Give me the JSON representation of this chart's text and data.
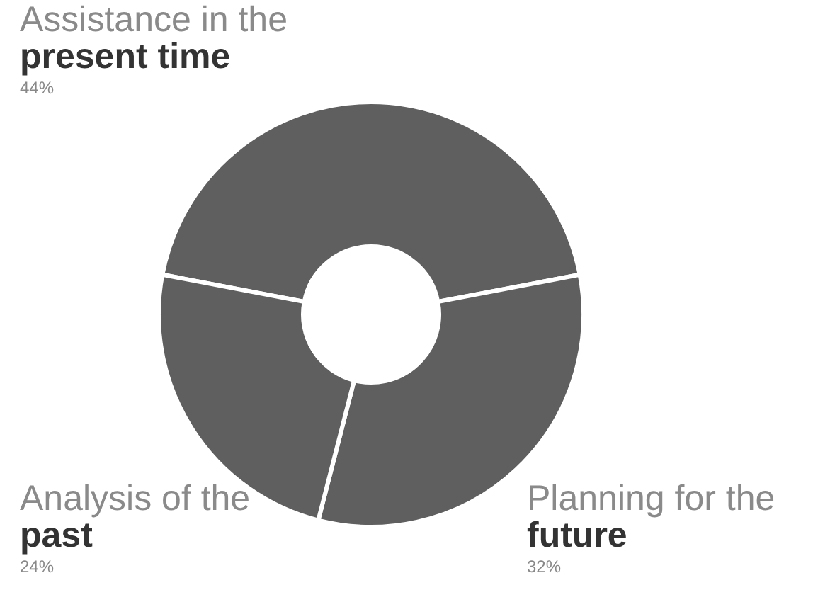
{
  "chart_data": {
    "type": "donut",
    "categories": [
      "Assistance in the\npresent time",
      "Planning for the\nfuture",
      "Analysis of the\npast"
    ],
    "values": [
      44,
      32,
      24
    ],
    "value_labels": [
      "44%",
      "32%",
      "24%"
    ],
    "colors": [
      "#5f5f5f",
      "#5f5f5f",
      "#5f5f5f"
    ]
  }
}
